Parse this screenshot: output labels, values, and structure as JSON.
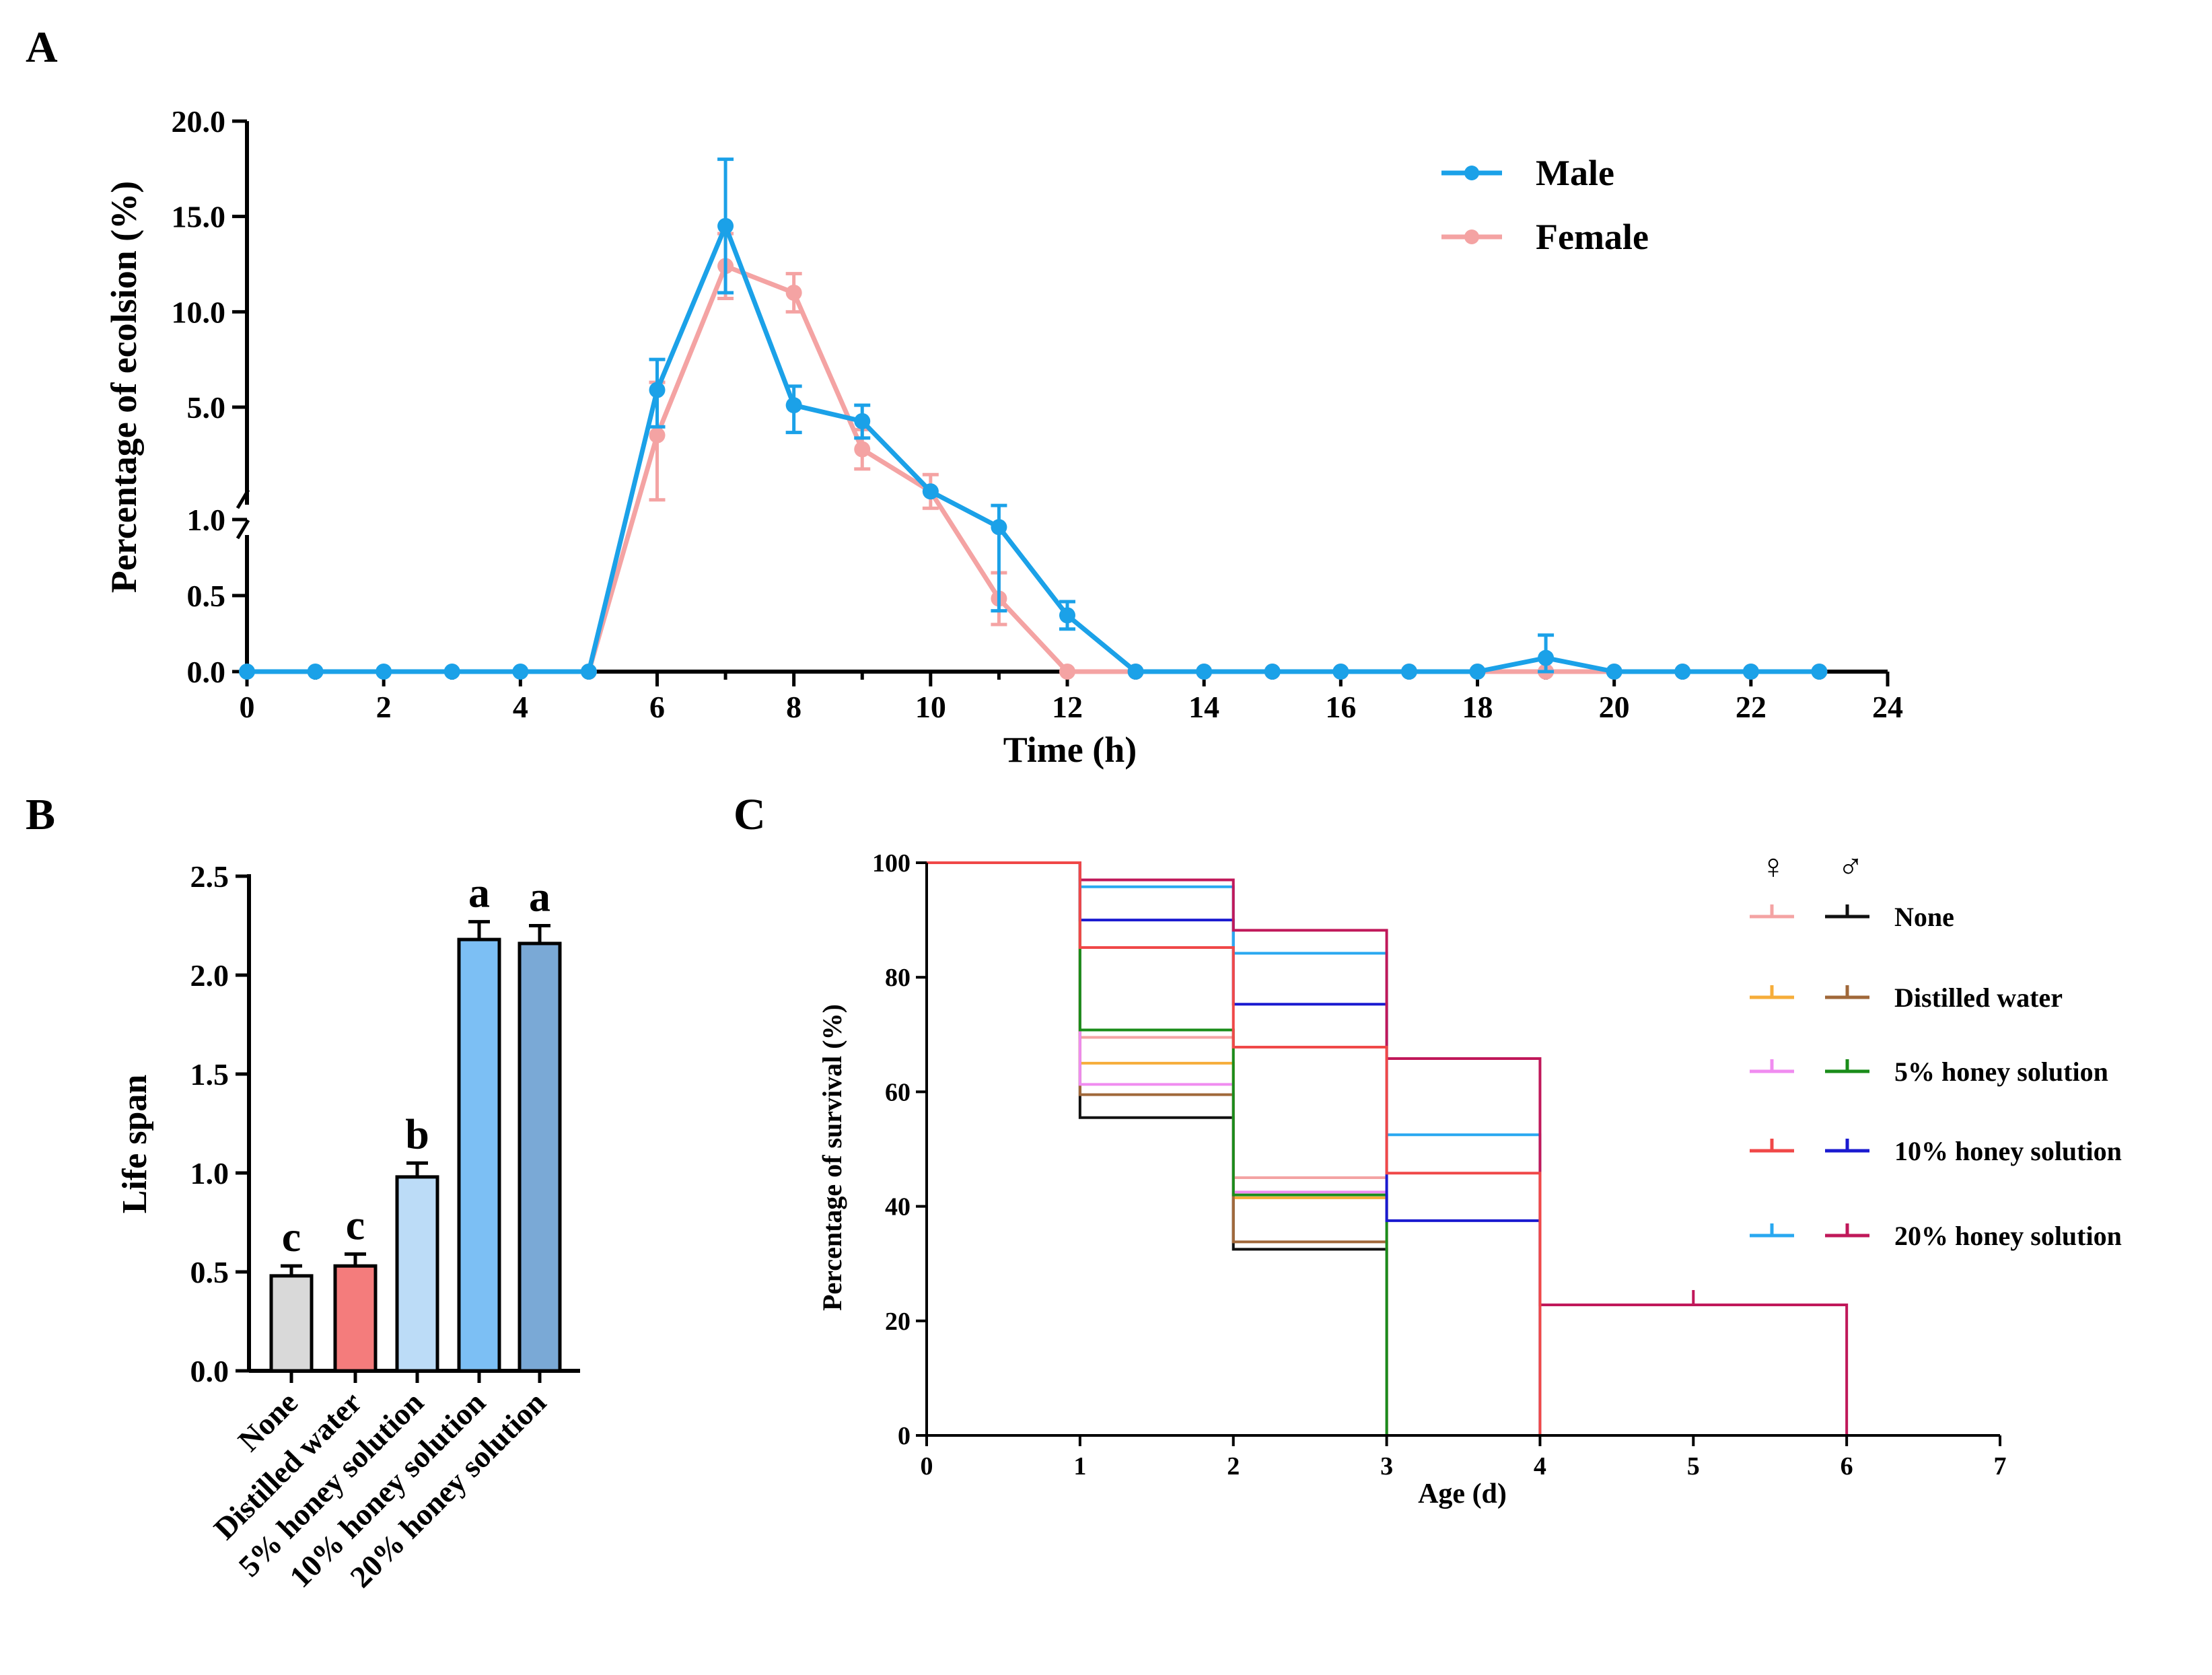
{
  "chart_data": [
    {
      "panel": "A",
      "type": "line",
      "xlabel": "Time (h)",
      "ylabel": "Percentage of ecolsion (%)",
      "xlim": [
        0,
        24
      ],
      "xticks": [
        "0",
        "2",
        "4",
        "6",
        "8",
        "10",
        "12",
        "14",
        "16",
        "18",
        "20",
        "22",
        "24"
      ],
      "y_axis_break": {
        "lower_range": [
          0,
          1.0
        ],
        "upper_range": [
          1.0,
          20.0
        ]
      },
      "yticks_lower": [
        "0.0",
        "0.5",
        "1.0"
      ],
      "yticks_upper": [
        "5.0",
        "10.0",
        "15.0",
        "20.0"
      ],
      "legend_position": "top-right",
      "x": [
        0,
        1,
        2,
        3,
        4,
        5,
        6,
        7,
        8,
        9,
        10,
        11,
        12,
        13,
        14,
        15,
        16,
        17,
        18,
        19,
        20,
        21,
        22,
        23
      ],
      "series": [
        {
          "name": "Female",
          "color": "#f4a3a3",
          "values": [
            null,
            null,
            null,
            null,
            null,
            0,
            4.0,
            12.4,
            11.0,
            3.5,
            2.0,
            0.48,
            0,
            0,
            0,
            0,
            0,
            0,
            0,
            0,
            0,
            0,
            0,
            0
          ],
          "errors": [
            null,
            null,
            null,
            null,
            null,
            0,
            2.3,
            1.7,
            1.0,
            0.7,
            0.6,
            0.17,
            0,
            0,
            0,
            0,
            0,
            0,
            0,
            0,
            0,
            0,
            0,
            0
          ]
        },
        {
          "name": "Male",
          "color": "#1ba1e8",
          "values": [
            0,
            0,
            0,
            0,
            0,
            0,
            5.9,
            14.5,
            5.1,
            4.5,
            2.0,
            0.95,
            0.37,
            0,
            0,
            0,
            0,
            0,
            0,
            0.09,
            0,
            0,
            0,
            0
          ],
          "errors": [
            0,
            0,
            0,
            0,
            0,
            0,
            1.6,
            3.5,
            1.0,
            0.6,
            0,
            0.55,
            0.09,
            0,
            0,
            0,
            0,
            0,
            0,
            0.15,
            0,
            0,
            0,
            0
          ]
        }
      ]
    },
    {
      "panel": "B",
      "type": "bar",
      "ylabel": "Life span",
      "xlabel": "",
      "ylim": [
        0,
        2.5
      ],
      "yticks": [
        "0.0",
        "0.5",
        "1.0",
        "1.5",
        "2.0",
        "2.5"
      ],
      "categories": [
        "None",
        "Distilled water",
        "5% honey solution",
        "10% honey solution",
        "20% honey solution"
      ],
      "values": [
        0.48,
        0.53,
        0.98,
        2.18,
        2.16
      ],
      "errors": [
        0.05,
        0.06,
        0.07,
        0.09,
        0.09
      ],
      "letters": [
        "c",
        "c",
        "b",
        "a",
        "a"
      ],
      "colors": [
        "#d9d9d9",
        "#f47c7c",
        "#bcdcf7",
        "#7cbff4",
        "#7aa9d6"
      ]
    },
    {
      "panel": "C",
      "type": "line",
      "subtype": "step survival curve",
      "xlabel": "Age (d)",
      "ylabel": "Percentage of survival (%)",
      "xlim": [
        0,
        7
      ],
      "ylim": [
        0,
        100
      ],
      "xticks": [
        "0",
        "1",
        "2",
        "3",
        "4",
        "5",
        "6",
        "7"
      ],
      "yticks": [
        "0",
        "20",
        "40",
        "60",
        "80",
        "100"
      ],
      "legend_header_female": "♀",
      "legend_header_male": "♂",
      "legend_position": "top-right",
      "groups": [
        {
          "label": "None",
          "female_color": "#f4a3a3",
          "male_color": "#111111"
        },
        {
          "label": "Distilled water",
          "female_color": "#f6ad3a",
          "male_color": "#a0683a"
        },
        {
          "label": "5% honey solution",
          "female_color": "#f08cf0",
          "male_color": "#1a8c1a"
        },
        {
          "label": "10% honey solution",
          "female_color": "#f04848",
          "male_color": "#1a1ad0"
        },
        {
          "label": "20% honey solution",
          "female_color": "#29a8f0",
          "male_color": "#c0185a"
        }
      ],
      "series": [
        {
          "name": "None ♀",
          "color": "#f4a3a3",
          "x": [
            0,
            1,
            2,
            3
          ],
          "y": [
            100,
            69.5,
            45,
            0
          ]
        },
        {
          "name": "None ♂",
          "color": "#111111",
          "x": [
            0,
            1,
            2,
            3
          ],
          "y": [
            100,
            55.5,
            32.5,
            0
          ]
        },
        {
          "name": "Distilled water ♀",
          "color": "#f6ad3a",
          "x": [
            0,
            1,
            2,
            3
          ],
          "y": [
            100,
            65,
            41.5,
            0
          ]
        },
        {
          "name": "Distilled water ♂",
          "color": "#a0683a",
          "x": [
            0,
            1,
            2,
            3
          ],
          "y": [
            100,
            59.5,
            33.8,
            0
          ]
        },
        {
          "name": "5% honey solution ♀",
          "color": "#f08cf0",
          "x": [
            0,
            1,
            2,
            3
          ],
          "y": [
            100,
            61.3,
            42.5,
            0
          ]
        },
        {
          "name": "5% honey solution ♂",
          "color": "#1a8c1a",
          "x": [
            0,
            1,
            2,
            3
          ],
          "y": [
            100,
            70.8,
            42,
            0
          ]
        },
        {
          "name": "10% honey solution ♂",
          "color": "#1a1ad0",
          "x": [
            0,
            1,
            2,
            3,
            4
          ],
          "y": [
            100,
            90,
            75.3,
            37.5,
            0
          ]
        },
        {
          "name": "20% honey solution ♀",
          "color": "#29a8f0",
          "x": [
            0,
            1,
            2,
            3,
            4
          ],
          "y": [
            100,
            95.8,
            84.2,
            52.5,
            0
          ]
        },
        {
          "name": "20% honey solution ♂",
          "color": "#c0185a",
          "x": [
            0,
            1,
            2,
            3,
            4,
            6
          ],
          "y": [
            100,
            97,
            88.2,
            65.8,
            22.8,
            0
          ]
        },
        {
          "name": "10% honey solution ♀",
          "color": "#f04848",
          "x": [
            0,
            1,
            2,
            3,
            4
          ],
          "y": [
            100,
            85.2,
            67.8,
            45.8,
            0
          ]
        }
      ],
      "censor_marks": [
        {
          "x": 5,
          "y": 22.8,
          "color": "#c0185a"
        }
      ]
    }
  ]
}
